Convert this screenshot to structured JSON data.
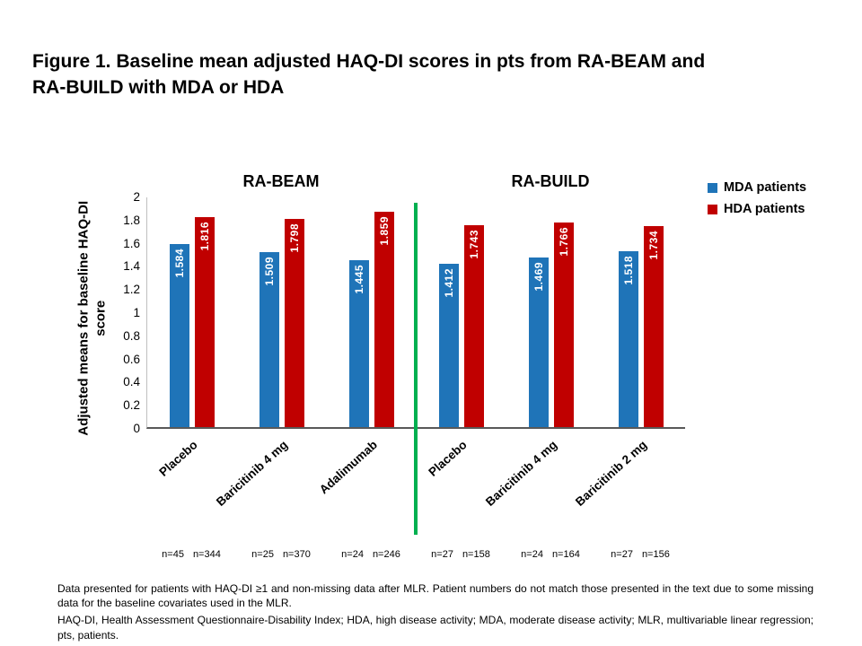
{
  "title_lines": [
    "Figure 1. Baseline mean adjusted HAQ-DI scores in pts from RA-BEAM and",
    "RA-BUILD with MDA or HDA"
  ],
  "chart_data": {
    "type": "bar",
    "ylabel": "Adjusted means for baseline HAQ-DI score",
    "ylim": [
      0,
      2
    ],
    "ytick_step": 0.2,
    "grid": false,
    "legend_position": "top-right",
    "sections": [
      {
        "label": "RA-BEAM",
        "groups": [
          0,
          1,
          2
        ]
      },
      {
        "label": "RA-BUILD",
        "groups": [
          3,
          4,
          5
        ]
      }
    ],
    "categories": [
      "Placebo",
      "Baricitinib 4 mg",
      "Adalimumab",
      "Placebo",
      "Baricitinib 4 mg",
      "Baricitinib 2 mg"
    ],
    "series": [
      {
        "name": "MDA patients",
        "key": "mda",
        "color": "#1F74B8",
        "values": [
          1.584,
          1.509,
          1.445,
          1.412,
          1.469,
          1.518
        ]
      },
      {
        "name": "HDA patients",
        "key": "hda",
        "color": "#C00000",
        "values": [
          1.816,
          1.798,
          1.859,
          1.743,
          1.766,
          1.734
        ]
      }
    ],
    "n_labels": [
      [
        "n=45",
        "n=344"
      ],
      [
        "n=25",
        "n=370"
      ],
      [
        "n=24",
        "n=246"
      ],
      [
        "n=27",
        "n=158"
      ],
      [
        "n=24",
        "n=164"
      ],
      [
        "n=27",
        "n=156"
      ]
    ],
    "divider_color": "#00B050"
  },
  "footnotes": [
    "Data presented for patients with HAQ-DI ≥1 and non-missing data after MLR. Patient numbers do not match those presented in the text due to some missing data for the baseline covariates used in the MLR.",
    "HAQ-DI, Health Assessment Questionnaire-Disability Index; HDA, high disease activity; MDA, moderate disease activity; MLR, multivariable linear regression; pts, patients."
  ]
}
